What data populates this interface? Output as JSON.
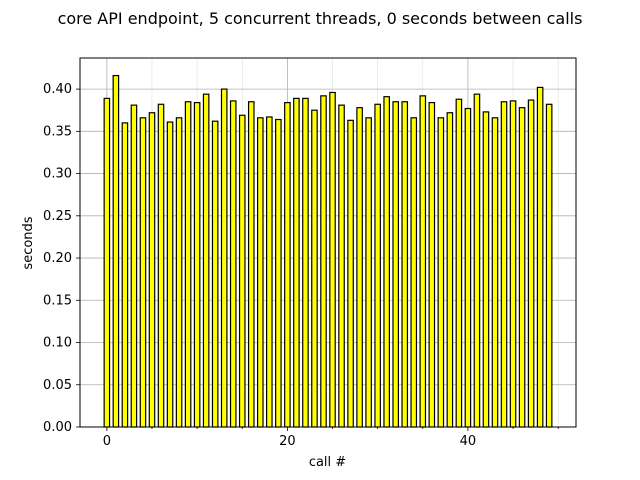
{
  "chart_data": {
    "type": "bar",
    "title": "core API endpoint, 5 concurrent threads, 0 seconds between calls",
    "xlabel": "call #",
    "ylabel": "seconds",
    "x": [
      0,
      1,
      2,
      3,
      4,
      5,
      6,
      7,
      8,
      9,
      10,
      11,
      12,
      13,
      14,
      15,
      16,
      17,
      18,
      19,
      20,
      21,
      22,
      23,
      24,
      25,
      26,
      27,
      28,
      29,
      30,
      31,
      32,
      33,
      34,
      35,
      36,
      37,
      38,
      39,
      40,
      41,
      42,
      43,
      44,
      45,
      46,
      47,
      48,
      49
    ],
    "values": [
      0.389,
      0.416,
      0.36,
      0.381,
      0.366,
      0.372,
      0.382,
      0.361,
      0.366,
      0.385,
      0.384,
      0.394,
      0.362,
      0.4,
      0.386,
      0.369,
      0.385,
      0.366,
      0.367,
      0.364,
      0.384,
      0.389,
      0.389,
      0.375,
      0.392,
      0.396,
      0.381,
      0.363,
      0.378,
      0.366,
      0.382,
      0.391,
      0.385,
      0.385,
      0.366,
      0.392,
      0.384,
      0.366,
      0.372,
      0.388,
      0.377,
      0.394,
      0.373,
      0.366,
      0.385,
      0.386,
      0.378,
      0.387,
      0.402,
      0.382
    ],
    "xlim": [
      -2.975,
      51.975
    ],
    "ylim": [
      0,
      0.4368
    ],
    "xticks": [
      0,
      20,
      40
    ],
    "xtick_labels": [
      "0",
      "20",
      "40"
    ],
    "yticks": [
      0,
      0.05,
      0.1,
      0.15,
      0.2,
      0.25,
      0.3,
      0.35,
      0.4
    ],
    "ytick_labels": [
      "0.00",
      "0.05",
      "0.10",
      "0.15",
      "0.20",
      "0.25",
      "0.30",
      "0.35",
      "0.40"
    ],
    "x_minor_step": 5,
    "y_minor_step": 0.025,
    "grid": true,
    "bar_width": 0.6,
    "colors": {
      "bar_fill": "#ffff00",
      "bar_edge": "#000000",
      "grid_major": "#b0b0b0",
      "grid_minor": "#e0e0e0",
      "axes": "#000000"
    }
  }
}
